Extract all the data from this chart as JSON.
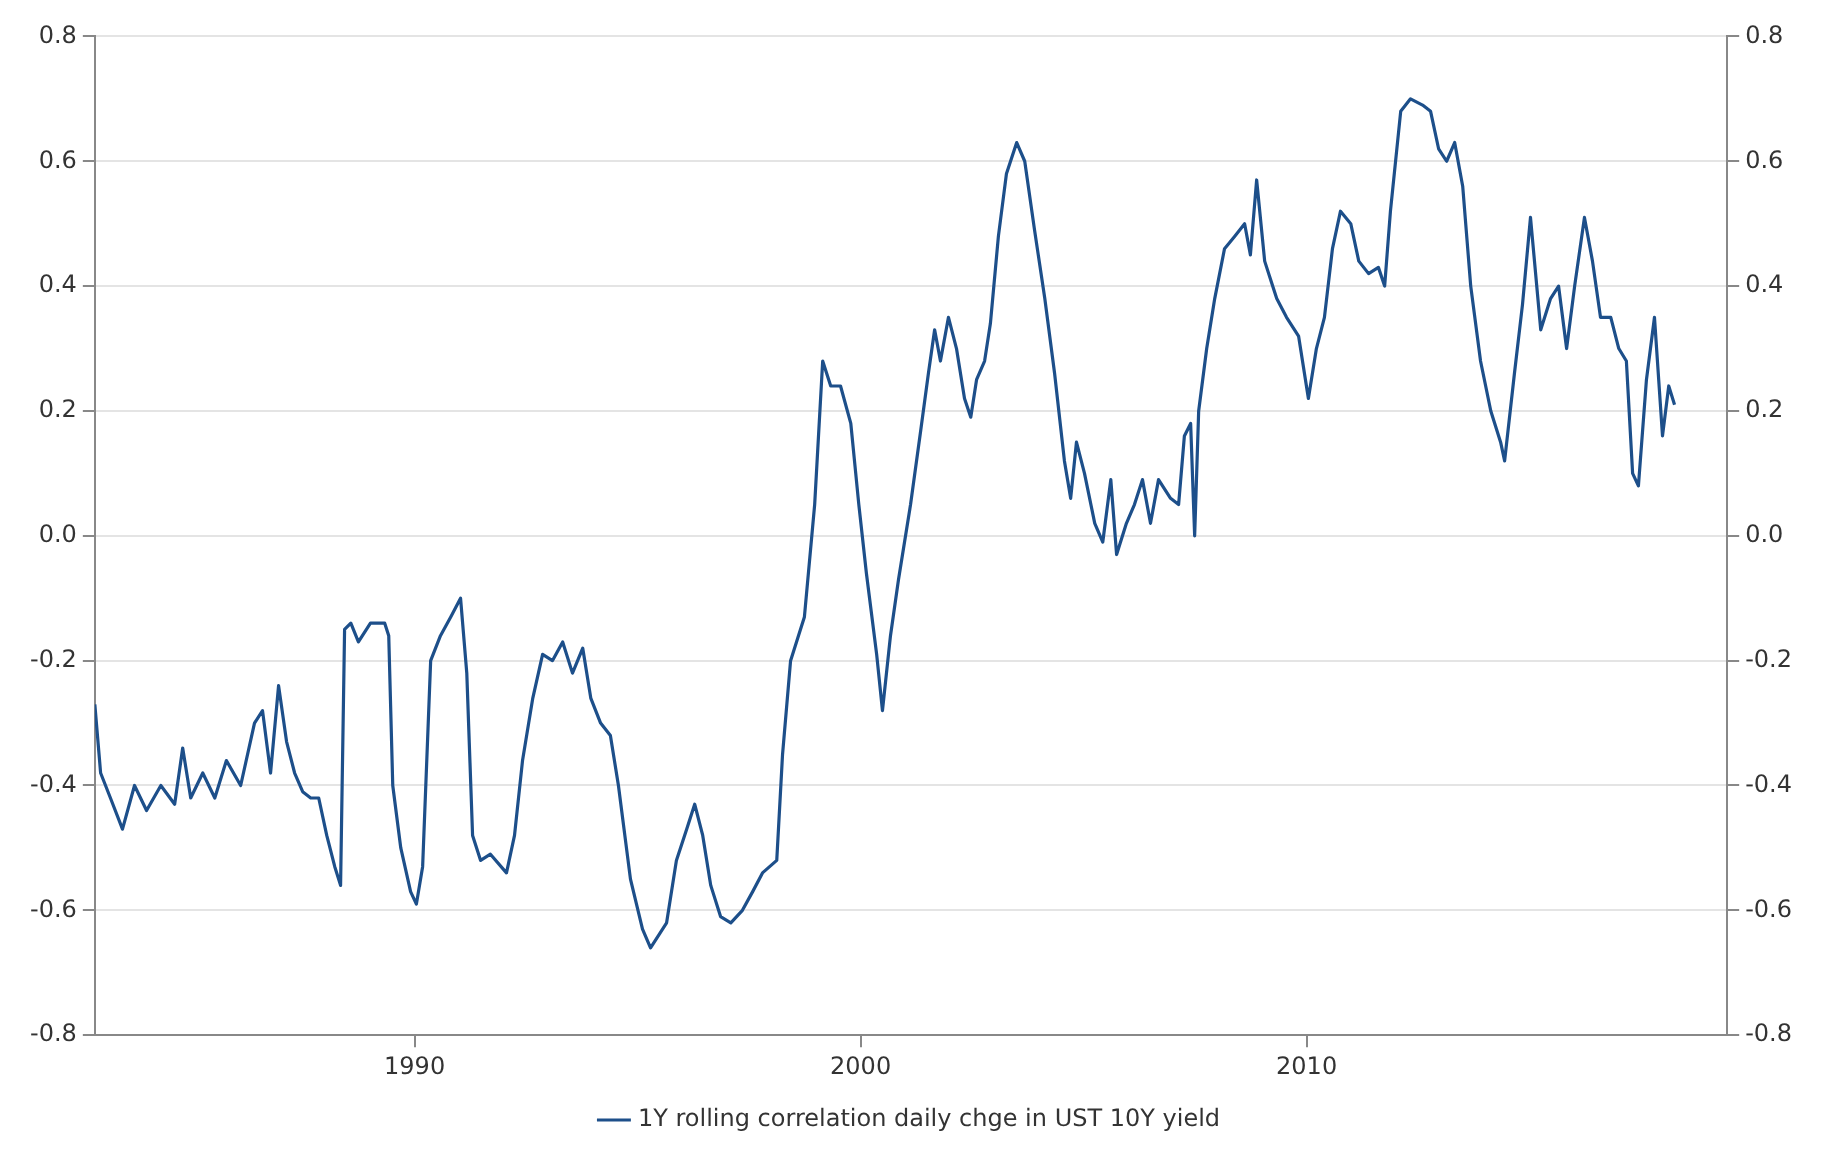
{
  "chart_data": {
    "type": "line",
    "x": [
      1982.83,
      1982.96,
      1983.18,
      1983.45,
      1983.72,
      1983.99,
      1984.31,
      1984.62,
      1984.8,
      1984.98,
      1985.25,
      1985.52,
      1985.78,
      1986.1,
      1986.41,
      1986.59,
      1986.77,
      1986.95,
      1987.13,
      1987.31,
      1987.49,
      1987.67,
      1987.85,
      1988.03,
      1988.21,
      1988.34,
      1988.43,
      1988.57,
      1988.74,
      1989.01,
      1989.33,
      1989.42,
      1989.51,
      1989.69,
      1989.91,
      1990.04,
      1990.18,
      1990.36,
      1990.58,
      1990.81,
      1991.03,
      1991.17,
      1991.3,
      1991.48,
      1991.7,
      1992.06,
      1992.24,
      1992.42,
      1992.65,
      1992.87,
      1993.09,
      1993.32,
      1993.54,
      1993.77,
      1993.95,
      1994.17,
      1994.39,
      1994.57,
      1994.84,
      1995.11,
      1995.29,
      1995.47,
      1995.65,
      1995.87,
      1996.1,
      1996.28,
      1996.46,
      1996.64,
      1996.86,
      1997.09,
      1997.35,
      1997.58,
      1997.8,
      1998.12,
      1998.25,
      1998.43,
      1998.74,
      1998.97,
      1999.15,
      1999.33,
      1999.55,
      1999.78,
      1999.96,
      2000.13,
      2000.36,
      2000.49,
      2000.67,
      2000.85,
      2001.12,
      2001.35,
      2001.52,
      2001.66,
      2001.79,
      2001.97,
      2002.15,
      2002.33,
      2002.47,
      2002.6,
      2002.78,
      2002.91,
      2003.09,
      2003.27,
      2003.5,
      2003.68,
      2003.9,
      2004.13,
      2004.35,
      2004.57,
      2004.71,
      2004.84,
      2005.02,
      2005.25,
      2005.43,
      2005.61,
      2005.74,
      2005.96,
      2006.14,
      2006.32,
      2006.5,
      2006.68,
      2006.95,
      2007.13,
      2007.26,
      2007.4,
      2007.49,
      2007.58,
      2007.76,
      2007.94,
      2008.16,
      2008.39,
      2008.61,
      2008.74,
      2008.88,
      2009.06,
      2009.33,
      2009.55,
      2009.82,
      2010.04,
      2010.22,
      2010.4,
      2010.58,
      2010.76,
      2010.99,
      2011.17,
      2011.39,
      2011.61,
      2011.75,
      2011.88,
      2012.11,
      2012.33,
      2012.6,
      2012.78,
      2012.96,
      2013.14,
      2013.32,
      2013.5,
      2013.68,
      2013.9,
      2014.13,
      2014.35,
      2014.44,
      2014.66,
      2014.84,
      2015.02,
      2015.25,
      2015.47,
      2015.65,
      2015.83,
      2016.01,
      2016.23,
      2016.41,
      2016.59,
      2016.82,
      2017.0,
      2017.17,
      2017.31,
      2017.44,
      2017.62,
      2017.8,
      2017.98,
      2018.12,
      2018.25
    ],
    "series": [
      {
        "name": "1Y rolling correlation daily chge in UST 10Y yield",
        "color": "#1d4f8a",
        "values": [
          -0.27,
          -0.38,
          -0.42,
          -0.47,
          -0.4,
          -0.44,
          -0.4,
          -0.43,
          -0.34,
          -0.42,
          -0.38,
          -0.42,
          -0.36,
          -0.4,
          -0.3,
          -0.28,
          -0.38,
          -0.24,
          -0.33,
          -0.38,
          -0.41,
          -0.42,
          -0.42,
          -0.48,
          -0.53,
          -0.56,
          -0.15,
          -0.14,
          -0.17,
          -0.14,
          -0.14,
          -0.16,
          -0.4,
          -0.5,
          -0.57,
          -0.59,
          -0.53,
          -0.2,
          -0.16,
          -0.13,
          -0.1,
          -0.22,
          -0.48,
          -0.52,
          -0.51,
          -0.54,
          -0.48,
          -0.36,
          -0.26,
          -0.19,
          -0.2,
          -0.17,
          -0.22,
          -0.18,
          -0.26,
          -0.3,
          -0.32,
          -0.4,
          -0.55,
          -0.63,
          -0.66,
          -0.64,
          -0.62,
          -0.52,
          -0.47,
          -0.43,
          -0.48,
          -0.56,
          -0.61,
          -0.62,
          -0.6,
          -0.57,
          -0.54,
          -0.52,
          -0.35,
          -0.2,
          -0.13,
          0.05,
          0.28,
          0.24,
          0.24,
          0.18,
          0.05,
          -0.06,
          -0.19,
          -0.28,
          -0.16,
          -0.07,
          0.05,
          0.17,
          0.26,
          0.33,
          0.28,
          0.35,
          0.3,
          0.22,
          0.19,
          0.25,
          0.28,
          0.34,
          0.48,
          0.58,
          0.63,
          0.6,
          0.49,
          0.38,
          0.26,
          0.12,
          0.06,
          0.15,
          0.1,
          0.02,
          -0.01,
          0.09,
          -0.03,
          0.02,
          0.05,
          0.09,
          0.02,
          0.09,
          0.06,
          0.05,
          0.16,
          0.18,
          0.0,
          0.2,
          0.3,
          0.38,
          0.46,
          0.48,
          0.5,
          0.45,
          0.57,
          0.44,
          0.38,
          0.35,
          0.32,
          0.22,
          0.3,
          0.35,
          0.46,
          0.52,
          0.5,
          0.44,
          0.42,
          0.43,
          0.4,
          0.52,
          0.68,
          0.7,
          0.69,
          0.68,
          0.62,
          0.6,
          0.63,
          0.56,
          0.4,
          0.28,
          0.2,
          0.15,
          0.12,
          0.26,
          0.37,
          0.51,
          0.33,
          0.38,
          0.4,
          0.3,
          0.4,
          0.51,
          0.44,
          0.35,
          0.35,
          0.3,
          0.28,
          0.1,
          0.08,
          0.25,
          0.35,
          0.16,
          0.24,
          0.21
        ]
      }
    ],
    "xlim": [
      1982.83,
      2019.43
    ],
    "xticks": [
      1990,
      2000,
      2010
    ],
    "ylim": [
      -0.8,
      0.8
    ],
    "yticks": [
      -0.8,
      -0.6,
      -0.4,
      -0.2,
      {
        "value": 0,
        "label": "0.0"
      },
      0.2,
      0.4,
      0.6,
      0.8
    ],
    "y2lim": [
      -0.8,
      0.8
    ],
    "y2ticks": [
      -0.8,
      -0.6,
      -0.4,
      -0.2,
      {
        "value": 0,
        "label": "0.0"
      },
      0.2,
      0.4,
      0.6,
      0.8
    ],
    "grid": "y",
    "legend": "bottom",
    "marker": "none",
    "line_style": "solid"
  }
}
